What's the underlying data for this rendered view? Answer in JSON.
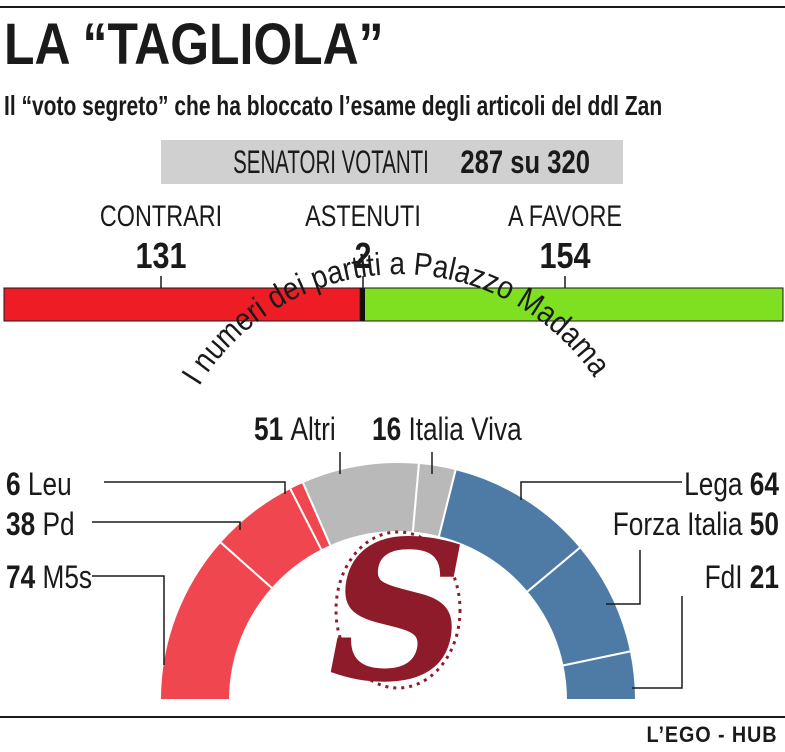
{
  "header": {
    "title": "LA “TAGLIOLA”",
    "subtitle": "Il “voto segreto” che ha bloccato l’esame degli articoli del ddl Zan"
  },
  "voters": {
    "label": "SENATORI VOTANTI",
    "value": "287 su 320"
  },
  "vote": {
    "items": [
      {
        "label": "CONTRARI",
        "value": "131",
        "count": 131,
        "color": "#ee1c25"
      },
      {
        "label": "ASTENUTI",
        "value": "2",
        "count": 2,
        "color": "#111111"
      },
      {
        "label": "A FAVORE",
        "value": "154",
        "count": 154,
        "color": "#7fe021"
      }
    ]
  },
  "chart_data": {
    "type": "pie",
    "title": "I numeri dei partiti a Palazzo Madama",
    "series": [
      {
        "label": "M5s",
        "value": 74,
        "color": "#f0464f"
      },
      {
        "label": "Pd",
        "value": 38,
        "color": "#f0464f"
      },
      {
        "label": "Leu",
        "value": 6,
        "color": "#f0464f"
      },
      {
        "label": "Altri",
        "value": 51,
        "color": "#b9b9b9"
      },
      {
        "label": "Italia Viva",
        "value": 16,
        "color": "#b9b9b9"
      },
      {
        "label": "Lega",
        "value": 64,
        "color": "#4d7ba6"
      },
      {
        "label": "Forza Italia",
        "value": 50,
        "color": "#4d7ba6"
      },
      {
        "label": "FdI",
        "value": 21,
        "color": "#4d7ba6"
      }
    ],
    "shape": "half-donut (parliament hemicycle)"
  },
  "logo": {
    "letter": "S",
    "color": "#8e1b2a"
  },
  "credit": "L’EGO - HUB"
}
